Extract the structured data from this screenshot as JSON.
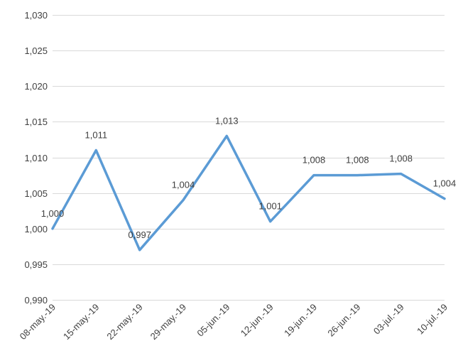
{
  "chart_data": {
    "type": "line",
    "title": "",
    "xlabel": "",
    "ylabel": "",
    "categories": [
      "08-may.-19",
      "15-may.-19",
      "22-may.-19",
      "29-may.-19",
      "05-jun.-19",
      "12-jun.-19",
      "19-jun.-19",
      "26-jun.-19",
      "03-jul.-19",
      "10-jul.-19"
    ],
    "series": [
      {
        "values": [
          1.0,
          1.011,
          0.997,
          1.004,
          1.013,
          1.001,
          1.0075,
          1.0075,
          1.0077,
          1.0042
        ],
        "labels": [
          "1,000",
          "1,011",
          "0,997",
          "1,004",
          "1,013",
          "1,001",
          "1,008",
          "1,008",
          "1,008",
          "1,004"
        ],
        "color": "#5b9bd5"
      }
    ],
    "yticks": [
      0.99,
      0.995,
      1.0,
      1.005,
      1.01,
      1.015,
      1.02,
      1.025,
      1.03
    ],
    "ytick_labels": [
      "0,990",
      "0,995",
      "1,000",
      "1,005",
      "1,010",
      "1,015",
      "1,020",
      "1,025",
      "1,030"
    ],
    "ylim": [
      0.99,
      1.03
    ],
    "grid": true,
    "legend": "none"
  }
}
